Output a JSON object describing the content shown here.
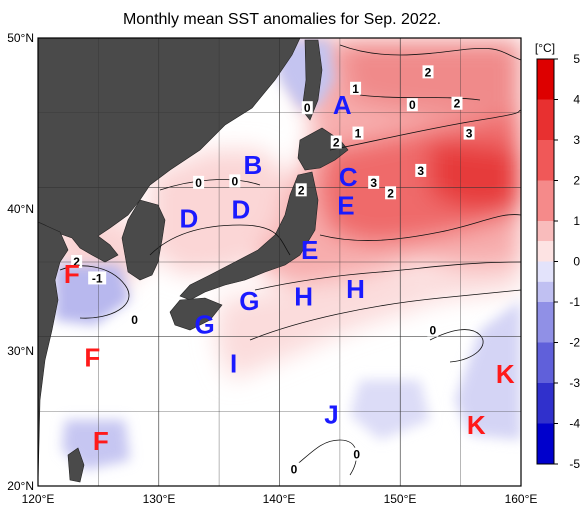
{
  "title": "Monthly mean SST anomalies for Sep. 2022.",
  "colors": {
    "land": "#4a4a4a",
    "sea_neutral": "#ffffff",
    "warm_region_label": "#ff1a1a",
    "cool_region_label": "#1a1aff"
  },
  "x_axis": {
    "labels": [
      "120°E",
      "130°E",
      "140°E",
      "150°E",
      "160°E"
    ],
    "range": [
      120,
      160
    ]
  },
  "y_axis": {
    "labels": [
      "50°N",
      "40°N",
      "30°N",
      "20°N"
    ],
    "range": [
      20,
      50
    ]
  },
  "colorbar": {
    "unit": "[°C]",
    "labels": [
      "5",
      "4",
      "3",
      "2",
      "1",
      "0",
      "-1",
      "-2",
      "-3",
      "-4",
      "-5"
    ],
    "stops": [
      {
        "value": 5,
        "color": "#dd0000"
      },
      {
        "value": 4,
        "color": "#e83030"
      },
      {
        "value": 3,
        "color": "#f05858"
      },
      {
        "value": 2,
        "color": "#f58a8a"
      },
      {
        "value": 1,
        "color": "#f9bcbc"
      },
      {
        "value": 0.5,
        "color": "#fde3e3"
      },
      {
        "value": 0,
        "color": "#ffffff"
      },
      {
        "value": -0.5,
        "color": "#e3e3fb"
      },
      {
        "value": -1,
        "color": "#c0c0f2"
      },
      {
        "value": -2,
        "color": "#9090e6"
      },
      {
        "value": -3,
        "color": "#6060da"
      },
      {
        "value": -4,
        "color": "#3030cc"
      },
      {
        "value": -5,
        "color": "#0000cc"
      }
    ]
  },
  "regions": [
    {
      "label": "A",
      "lon": 145.2,
      "lat": 45.5,
      "color": "cool"
    },
    {
      "label": "B",
      "lon": 137.8,
      "lat": 41.5,
      "color": "cool"
    },
    {
      "label": "C",
      "lon": 145.7,
      "lat": 40.7,
      "color": "cool"
    },
    {
      "label": "D",
      "lon": 132.5,
      "lat": 37.9,
      "color": "cool"
    },
    {
      "label": "D",
      "lon": 136.8,
      "lat": 38.5,
      "color": "cool"
    },
    {
      "label": "E",
      "lon": 145.5,
      "lat": 38.8,
      "color": "cool"
    },
    {
      "label": "E",
      "lon": 142.5,
      "lat": 35.8,
      "color": "cool"
    },
    {
      "label": "F",
      "lon": 122.8,
      "lat": 34.2,
      "color": "warm"
    },
    {
      "label": "F",
      "lon": 124.5,
      "lat": 28.6,
      "color": "warm"
    },
    {
      "label": "F",
      "lon": 125.2,
      "lat": 23.0,
      "color": "warm"
    },
    {
      "label": "G",
      "lon": 133.8,
      "lat": 30.8,
      "color": "cool"
    },
    {
      "label": "G",
      "lon": 137.5,
      "lat": 32.4,
      "color": "cool"
    },
    {
      "label": "H",
      "lon": 142.0,
      "lat": 32.7,
      "color": "cool"
    },
    {
      "label": "H",
      "lon": 146.3,
      "lat": 33.2,
      "color": "cool"
    },
    {
      "label": "I",
      "lon": 136.2,
      "lat": 28.2,
      "color": "cool"
    },
    {
      "label": "J",
      "lon": 144.3,
      "lat": 24.8,
      "color": "cool"
    },
    {
      "label": "K",
      "lon": 158.7,
      "lat": 27.5,
      "color": "warm"
    },
    {
      "label": "K",
      "lon": 156.3,
      "lat": 24.1,
      "color": "warm"
    }
  ],
  "contour_labels": [
    {
      "text": "2",
      "lon": 152.3,
      "lat": 47.7
    },
    {
      "text": "0",
      "lon": 151.0,
      "lat": 45.5
    },
    {
      "text": "1",
      "lon": 146.3,
      "lat": 46.6
    },
    {
      "text": "2",
      "lon": 154.7,
      "lat": 45.6
    },
    {
      "text": "0",
      "lon": 142.3,
      "lat": 45.3
    },
    {
      "text": "1",
      "lon": 146.5,
      "lat": 43.6
    },
    {
      "text": "2",
      "lon": 144.7,
      "lat": 43.0
    },
    {
      "text": "3",
      "lon": 155.7,
      "lat": 43.6
    },
    {
      "text": "3",
      "lon": 151.7,
      "lat": 41.1
    },
    {
      "text": "3",
      "lon": 147.8,
      "lat": 40.3
    },
    {
      "text": "2",
      "lon": 149.2,
      "lat": 39.6
    },
    {
      "text": "2",
      "lon": 141.8,
      "lat": 39.8
    },
    {
      "text": "0",
      "lon": 133.3,
      "lat": 40.3
    },
    {
      "text": "0",
      "lon": 136.3,
      "lat": 40.4
    },
    {
      "text": "2",
      "lon": 123.2,
      "lat": 35.0
    },
    {
      "text": "-1",
      "lon": 124.9,
      "lat": 33.9
    },
    {
      "text": "0",
      "lon": 128.0,
      "lat": 31.1
    },
    {
      "text": "0",
      "lon": 152.7,
      "lat": 30.4
    },
    {
      "text": "0",
      "lon": 141.2,
      "lat": 21.1
    },
    {
      "text": "0",
      "lon": 146.4,
      "lat": 22.1
    }
  ]
}
